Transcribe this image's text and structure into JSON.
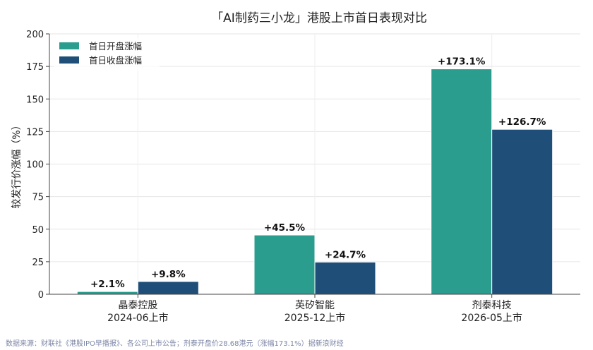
{
  "chart_data": {
    "type": "bar",
    "title": "「AI制药三小龙」港股上市首日表现对比",
    "ylabel": "较发行价涨幅（%）",
    "xlabel": "",
    "ylim": [
      0,
      200
    ],
    "yticks": [
      0,
      25,
      50,
      75,
      100,
      125,
      150,
      175,
      200
    ],
    "categories": [
      {
        "name": "晶泰控股",
        "date": "2024-06上市"
      },
      {
        "name": "英矽智能",
        "date": "2025-12上市"
      },
      {
        "name": "剂泰科技",
        "date": "2026-05上市"
      }
    ],
    "series": [
      {
        "name": "首日开盘涨幅",
        "color": "#2a9d8f",
        "values": [
          2.1,
          45.5,
          173.1
        ],
        "labels": [
          "+2.1%",
          "+45.5%",
          "+173.1%"
        ]
      },
      {
        "name": "首日收盘涨幅",
        "color": "#1f4e79",
        "values": [
          9.8,
          24.7,
          126.7
        ],
        "labels": [
          "+9.8%",
          "+24.7%",
          "+126.7%"
        ]
      }
    ],
    "legend": "top-left",
    "grid": true
  },
  "footnote": "数据来源：财联社《港股IPO早播报》、各公司上市公告；剂泰开盘价28.68港元（涨幅173.1%）据新浪财经"
}
